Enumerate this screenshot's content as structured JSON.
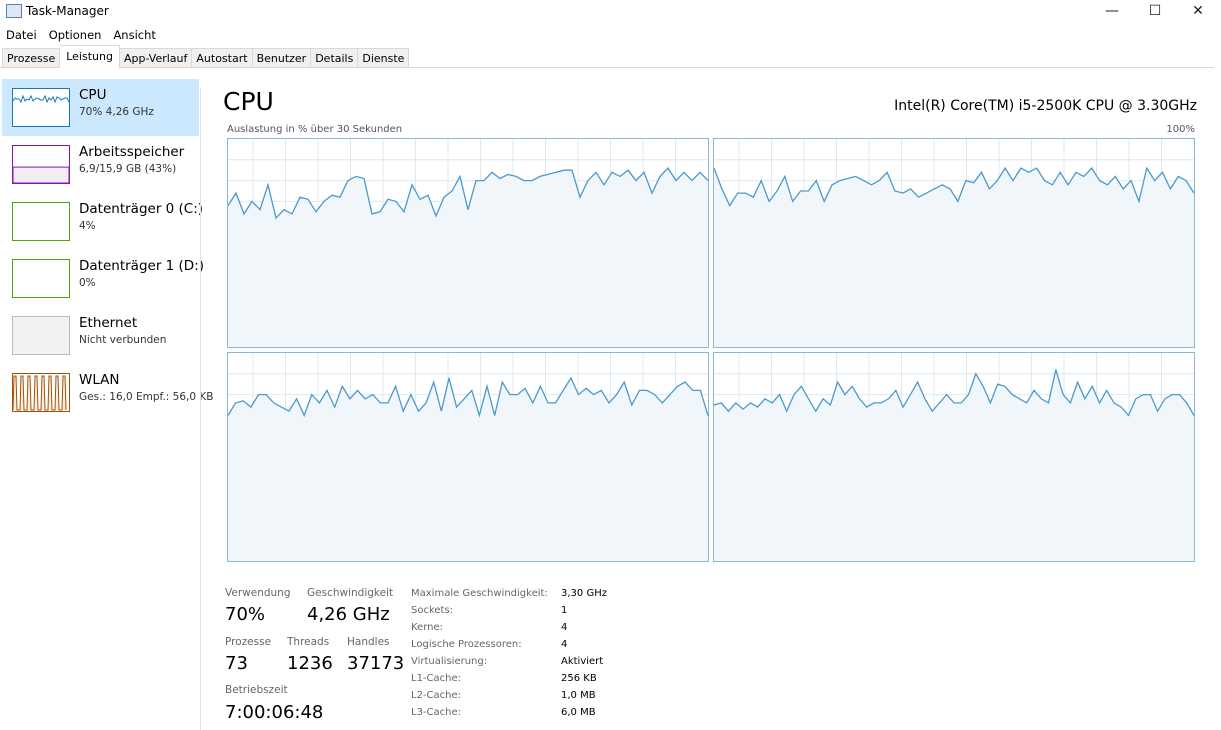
{
  "window": {
    "title": "Task-Manager",
    "minimize": "—",
    "maximize": "☐",
    "close": "✕"
  },
  "menu": [
    "Datei",
    "Optionen",
    "Ansicht"
  ],
  "tabs": [
    {
      "label": "Prozesse"
    },
    {
      "label": "Leistung",
      "active": true
    },
    {
      "label": "App-Verlauf"
    },
    {
      "label": "Autostart"
    },
    {
      "label": "Benutzer"
    },
    {
      "label": "Details"
    },
    {
      "label": "Dienste"
    }
  ],
  "sidebar": [
    {
      "name": "CPU",
      "sub": "70% 4,26 GHz",
      "color": "#1779ba",
      "active": true
    },
    {
      "name": "Arbeitsspeicher",
      "sub": "6,9/15,9 GB (43%)",
      "color": "#8b12ae",
      "level": 43
    },
    {
      "name": "Datenträger 0 (C:)",
      "sub": "4%",
      "color": "#4da60c"
    },
    {
      "name": "Datenträger 1 (D:)",
      "sub": "0%",
      "color": "#4da60c"
    },
    {
      "name": "Ethernet",
      "sub": "Nicht verbunden",
      "color": "#bbbbbb"
    },
    {
      "name": "WLAN",
      "sub": "Ges.: 16,0 Empf.: 56,0 KB",
      "color": "#a74f01"
    }
  ],
  "main": {
    "title": "CPU",
    "cpu_name": "Intel(R) Core(TM) i5-2500K CPU @ 3.30GHz",
    "axis_label": "Auslastung in % über 30 Sekunden",
    "axis_max": "100%"
  },
  "chart_data": {
    "type": "line",
    "ylim": [
      0,
      100
    ],
    "grid": true,
    "line_color": "#4b9acb",
    "fill_color": "#f1f6fb",
    "series": [
      {
        "values": [
          68,
          74,
          64,
          70,
          66,
          78,
          62,
          66,
          64,
          72,
          71,
          65,
          70,
          73,
          72,
          80,
          82,
          81,
          64,
          65,
          71,
          70,
          65,
          78,
          71,
          73,
          63,
          72,
          75,
          82,
          66,
          80,
          80,
          84,
          81,
          83,
          82,
          80,
          80,
          82,
          83,
          84,
          85,
          85,
          72,
          80,
          84,
          78,
          84,
          82,
          85,
          80,
          84,
          74,
          82,
          86,
          80,
          84,
          80,
          84,
          80
        ]
      },
      {
        "values": [
          86,
          76,
          68,
          74,
          74,
          72,
          80,
          70,
          75,
          82,
          70,
          75,
          75,
          80,
          70,
          78,
          80,
          81,
          82,
          80,
          78,
          80,
          84,
          75,
          74,
          76,
          72,
          74,
          76,
          78,
          76,
          70,
          80,
          79,
          84,
          76,
          80,
          86,
          80,
          86,
          84,
          86,
          80,
          78,
          84,
          78,
          84,
          82,
          86,
          80,
          78,
          82,
          76,
          80,
          70,
          86,
          80,
          84,
          76,
          82,
          80,
          74
        ]
      },
      {
        "values": [
          70,
          76,
          77,
          74,
          80,
          80,
          76,
          74,
          72,
          78,
          70,
          80,
          76,
          82,
          74,
          84,
          78,
          82,
          78,
          80,
          76,
          76,
          84,
          72,
          80,
          72,
          76,
          86,
          72,
          88,
          74,
          78,
          82,
          70,
          84,
          70,
          86,
          80,
          80,
          83,
          76,
          84,
          76,
          76,
          82,
          88,
          80,
          83,
          80,
          82,
          76,
          80,
          86,
          75,
          82,
          82,
          80,
          76,
          80,
          84,
          86,
          82,
          82,
          70
        ]
      },
      {
        "values": [
          75,
          76,
          72,
          76,
          73,
          76,
          74,
          78,
          76,
          80,
          72,
          80,
          84,
          78,
          72,
          78,
          75,
          86,
          80,
          84,
          78,
          74,
          76,
          76,
          78,
          82,
          74,
          80,
          86,
          78,
          72,
          76,
          80,
          76,
          76,
          80,
          90,
          84,
          76,
          85,
          84,
          80,
          78,
          76,
          82,
          78,
          76,
          92,
          80,
          76,
          86,
          78,
          84,
          76,
          82,
          76,
          74,
          70,
          78,
          80,
          80,
          72,
          78,
          80,
          80,
          76,
          70
        ]
      }
    ]
  },
  "stats": {
    "usage_label": "Verwendung",
    "usage": "70%",
    "speed_label": "Geschwindigkeit",
    "speed": "4,26 GHz",
    "proc_label": "Prozesse",
    "proc": "73",
    "threads_label": "Threads",
    "threads": "1236",
    "handles_label": "Handles",
    "handles": "37173",
    "uptime_label": "Betriebszeit",
    "uptime": "7:00:06:48",
    "details": [
      {
        "k": "Maximale Geschwindigkeit:",
        "v": "3,30 GHz"
      },
      {
        "k": "Sockets:",
        "v": "1"
      },
      {
        "k": "Kerne:",
        "v": "4"
      },
      {
        "k": "Logische Prozessoren:",
        "v": "4"
      },
      {
        "k": "Virtualisierung:",
        "v": "Aktiviert"
      },
      {
        "k": "L1-Cache:",
        "v": "256 KB"
      },
      {
        "k": "L2-Cache:",
        "v": "1,0 MB"
      },
      {
        "k": "L3-Cache:",
        "v": "6,0 MB"
      }
    ]
  }
}
